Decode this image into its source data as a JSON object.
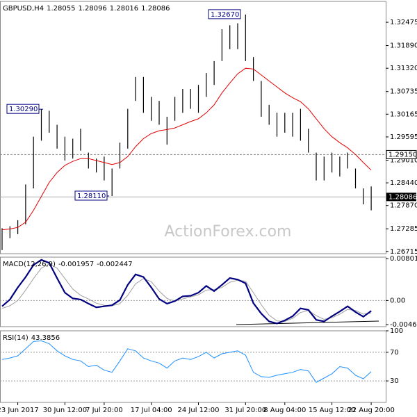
{
  "chart_data": [
    {
      "type": "ohlc",
      "title": "GBPUSD,H4",
      "header_values": [
        1.28055,
        1.28096,
        1.28016,
        1.28086
      ],
      "watermark": "ActionForex.com",
      "categories": [
        null,
        null,
        "23 Jun 2017",
        null,
        null,
        null,
        null,
        null,
        "30 Jun 12:00",
        null,
        null,
        null,
        null,
        "7 Jul 20:00",
        null,
        null,
        null,
        null,
        null,
        "17 Jul 04:00",
        null,
        null,
        null,
        null,
        null,
        "24 Jul 12:00",
        null,
        null,
        null,
        null,
        null,
        "31 Jul 20:00",
        null,
        null,
        null,
        null,
        "8 Aug 04:00",
        null,
        null,
        null,
        null,
        null,
        "15 Aug 12:00",
        null,
        null,
        null,
        null,
        "22 Aug 20:00"
      ],
      "high": [
        1.273,
        1.2735,
        1.275,
        1.284,
        1.296,
        1.3029,
        1.3025,
        1.299,
        1.296,
        1.2955,
        1.298,
        1.292,
        1.2905,
        1.291,
        1.288,
        1.2945,
        1.303,
        1.311,
        1.311,
        1.306,
        1.305,
        1.301,
        1.306,
        1.308,
        1.308,
        1.309,
        1.312,
        1.315,
        1.323,
        1.324,
        1.3245,
        1.3267,
        1.316,
        1.31,
        1.304,
        1.302,
        1.302,
        1.302,
        1.303,
        1.298,
        1.292,
        1.291,
        1.292,
        1.291,
        1.292,
        1.288,
        1.283,
        1.2835
      ],
      "low": [
        1.2675,
        1.2705,
        1.2715,
        1.274,
        1.283,
        1.295,
        1.297,
        1.293,
        1.29,
        1.2905,
        1.2925,
        1.288,
        1.287,
        1.285,
        1.2811,
        1.288,
        1.293,
        1.305,
        1.302,
        1.3,
        1.299,
        1.294,
        1.3,
        1.302,
        1.303,
        1.302,
        1.306,
        1.309,
        1.315,
        1.318,
        1.318,
        1.315,
        1.31,
        1.301,
        1.299,
        1.296,
        1.297,
        1.296,
        1.295,
        1.292,
        1.285,
        1.285,
        1.287,
        1.286,
        1.288,
        1.283,
        1.279,
        1.2775
      ],
      "ma": {
        "color": "#e00000",
        "values": [
          1.2726,
          1.2728,
          1.2732,
          1.2745,
          1.2775,
          1.281,
          1.2845,
          1.287,
          1.2888,
          1.2898,
          1.2905,
          1.2905,
          1.29,
          1.2895,
          1.289,
          1.2895,
          1.291,
          1.2935,
          1.2955,
          1.2968,
          1.2975,
          1.2978,
          1.2982,
          1.299,
          1.2998,
          1.3005,
          1.302,
          1.304,
          1.307,
          1.3095,
          1.3118,
          1.3132,
          1.313,
          1.3115,
          1.31,
          1.3085,
          1.307,
          1.3058,
          1.3048,
          1.303,
          1.3005,
          1.298,
          1.296,
          1.2945,
          1.2932,
          1.2915,
          1.2895,
          1.2876
        ]
      },
      "color": "#000000",
      "ylim": [
        1.2666,
        1.33
      ],
      "yticks": [
        1.32475,
        {
          "value": 1.3189,
          "label": "1.31890"
        },
        {
          "value": 1.3132,
          "label": "1.31320"
        },
        1.30735,
        1.30165,
        1.29595,
        {
          "value": 1.2901,
          "label": "1.29010"
        },
        {
          "value": 1.2844,
          "label": "1.28440"
        },
        {
          "value": 1.2787,
          "label": "1.27870"
        },
        1.27285,
        1.26715
      ],
      "annotations": [
        {
          "value": 1.3267,
          "label": "1.32670"
        },
        {
          "value": 1.3029,
          "label": "1.30290"
        },
        {
          "value": 1.2811,
          "label": "1.28110"
        }
      ],
      "hline": {
        "value": 1.2915,
        "label": "1.29150"
      },
      "last": 1.28086
    },
    {
      "type": "line",
      "title": "MACD(12,26,9)",
      "header_values": [
        -0.001957,
        -0.002447
      ],
      "series": [
        {
          "color": "#000080",
          "values": [
            -0.0011,
            0.0002,
            0.0025,
            0.0045,
            0.0068,
            0.0078,
            0.0072,
            0.0043,
            0.0015,
            0.0004,
            0.0002,
            -0.0006,
            -0.0013,
            -0.0011,
            -0.0009,
            0.0001,
            0.003,
            0.005,
            0.0045,
            0.0025,
            0.0003,
            -0.0006,
            -0.0001,
            0.0008,
            0.0009,
            0.0015,
            0.0028,
            0.0018,
            0.003,
            0.0043,
            0.004,
            0.0033,
            -0.0005,
            -0.0025,
            -0.004,
            -0.0044,
            -0.0038,
            -0.003,
            -0.0015,
            -0.0018,
            -0.0037,
            -0.004,
            -0.003,
            -0.0021,
            -0.0011,
            -0.0022,
            -0.0031,
            -0.002
          ]
        },
        {
          "color": "#a0a0a0",
          "values": [
            -0.0015,
            -0.001,
            0.0,
            0.002,
            0.0042,
            0.0062,
            0.007,
            0.0062,
            0.0042,
            0.0022,
            0.001,
            0.0003,
            -0.0005,
            -0.0009,
            -0.001,
            -0.0006,
            0.001,
            0.0032,
            0.0042,
            0.0036,
            0.0018,
            0.0004,
            -0.0001,
            0.0003,
            0.0007,
            0.0011,
            0.002,
            0.0021,
            0.0025,
            0.0035,
            0.0039,
            0.0037,
            0.0015,
            -0.0008,
            -0.0028,
            -0.0039,
            -0.004,
            -0.0034,
            -0.0023,
            -0.0019,
            -0.0029,
            -0.0036,
            -0.0033,
            -0.0026,
            -0.0017,
            -0.0019,
            -0.0026,
            -0.0024
          ]
        }
      ],
      "ylim": [
        -0.005,
        0.0083
      ],
      "yticks": [
        0.008012,
        {
          "value": 0,
          "label": "0.00"
        },
        -0.004619
      ]
    },
    {
      "type": "line",
      "title": "RSI(14)",
      "header_values": [
        43.3856
      ],
      "series": [
        {
          "color": "#1e90ff",
          "values": [
            60,
            62,
            65,
            75,
            85,
            86,
            82,
            72,
            65,
            60,
            58,
            50,
            52,
            45,
            42,
            58,
            75,
            72,
            62,
            58,
            55,
            48,
            58,
            62,
            60,
            64,
            70,
            62,
            68,
            70,
            72,
            66,
            42,
            36,
            35,
            38,
            40,
            42,
            46,
            44,
            28,
            34,
            40,
            50,
            48,
            38,
            33,
            43
          ]
        }
      ],
      "ylim": [
        0,
        100
      ],
      "yticks": [
        100,
        70,
        30
      ]
    }
  ]
}
